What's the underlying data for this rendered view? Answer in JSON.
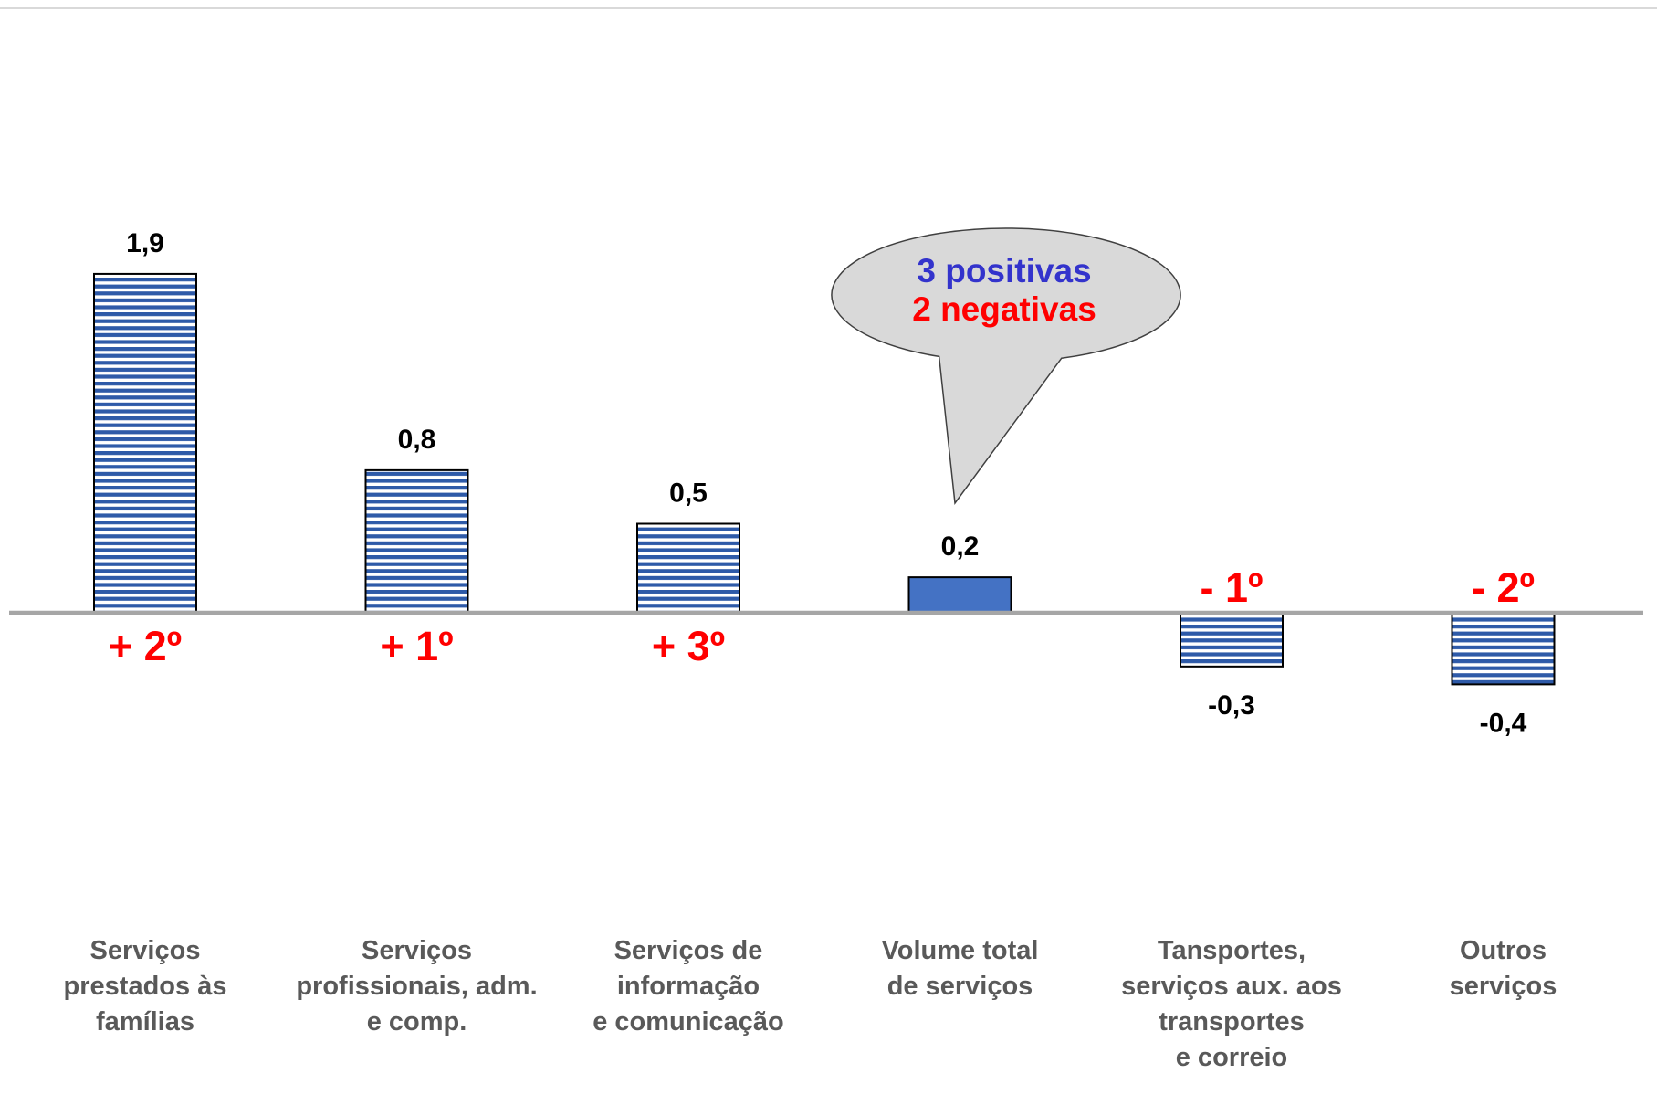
{
  "chart_data": {
    "type": "bar",
    "categories": [
      [
        "Serviços",
        "prestados às",
        "famílias"
      ],
      [
        "Serviços",
        "profissionais, adm.",
        "e comp."
      ],
      [
        "Serviços de",
        "informação",
        "e comunicação"
      ],
      [
        "Volume total",
        "de serviços"
      ],
      [
        "Tansportes,",
        "serviços aux. aos",
        "transportes",
        "e correio"
      ],
      [
        "Outros",
        "serviços"
      ]
    ],
    "values": [
      1.9,
      0.8,
      0.5,
      0.2,
      -0.3,
      -0.4
    ],
    "value_labels": [
      "1,9",
      "0,8",
      "0,5",
      "0,2",
      "-0,3",
      "-0,4"
    ],
    "rank_labels": [
      "+ 2º",
      "+ 1º",
      "+ 3º",
      "",
      "- 1º",
      "- 2º"
    ],
    "highlight_index": 3,
    "ylim": [
      -2.45,
      3.23
    ],
    "grid": false,
    "legend": "none",
    "callout": {
      "line1": "3 positivas",
      "line2": "2 negativas"
    }
  },
  "colors": {
    "stripe_blue": "#2e5aa8",
    "stripe_white": "#ffffff",
    "highlight_fill": "#4472c4",
    "bar_border": "#000000",
    "axis_line": "#a6a6a6",
    "top_rule": "#d9d9d9",
    "rank_color": "#ff0000",
    "category_text": "#595959",
    "value_text": "#000000",
    "bubble_fill": "#d9d9d9",
    "bubble_border": "#404040",
    "bubble_positive": "#3333cc",
    "bubble_negative": "#ff0000"
  }
}
